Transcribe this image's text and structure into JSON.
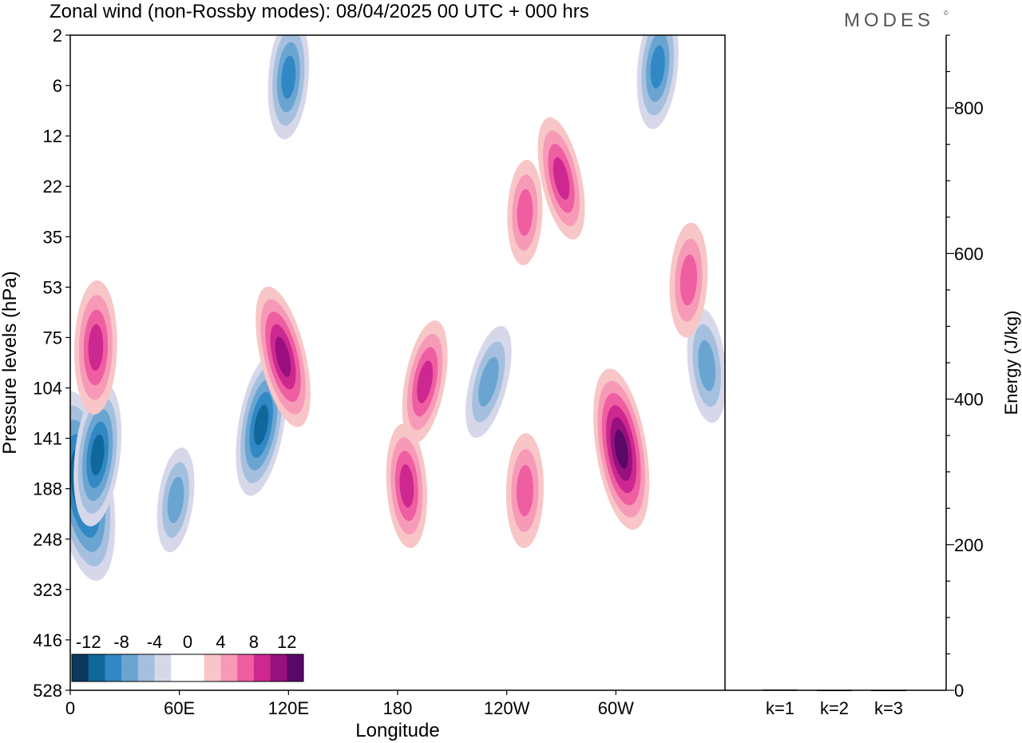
{
  "title": "Zonal wind (non-Rossby modes):  08/04/2025  00 UTC  + 000 hrs",
  "logo": {
    "text": "MODES",
    "mark": "©"
  },
  "chart_data": [
    {
      "type": "heatmap",
      "xlabel": "Longitude",
      "ylabel": "Pressure levels (hPa)",
      "x_ticks": [
        "0",
        "60E",
        "120E",
        "180",
        "120W",
        "60W"
      ],
      "x_tick_degrees": [
        0,
        60,
        120,
        180,
        240,
        300
      ],
      "xlim_degrees_east": [
        0,
        360
      ],
      "y_ticks": [
        "2",
        "6",
        "12",
        "22",
        "35",
        "53",
        "75",
        "104",
        "141",
        "188",
        "248",
        "323",
        "416",
        "528"
      ],
      "y_axis": "pressure increasing downward, top 2 hPa, bottom 528 hPa",
      "colorbar": {
        "labels": [
          "-12",
          "-8",
          "-4",
          "0",
          "4",
          "8",
          "12"
        ],
        "colors": [
          "#0b3a5e",
          "#10679b",
          "#3188c4",
          "#6aa5d2",
          "#a5c0de",
          "#d6d8ea",
          "#ffffff",
          "#ffffff",
          "#f8c6c6",
          "#f79ab8",
          "#ef5ea0",
          "#cc2890",
          "#98107e",
          "#5a0868"
        ]
      },
      "features": [
        {
          "kind": "neg",
          "lon": 7,
          "p": 185,
          "peak": -14
        },
        {
          "kind": "neg",
          "lon": 15,
          "p": 155,
          "peak": -9
        },
        {
          "kind": "pos",
          "lon": 14,
          "p": 80,
          "peak": 8
        },
        {
          "kind": "neg",
          "lon": 58,
          "p": 200,
          "peak": -5
        },
        {
          "kind": "neg",
          "lon": 105,
          "p": 130,
          "peak": -9
        },
        {
          "kind": "pos",
          "lon": 117,
          "p": 85,
          "peak": 9
        },
        {
          "kind": "pos",
          "lon": 185,
          "p": 185,
          "peak": 7
        },
        {
          "kind": "pos",
          "lon": 195,
          "p": 100,
          "peak": 7
        },
        {
          "kind": "neg",
          "lon": 230,
          "p": 100,
          "peak": -6
        },
        {
          "kind": "pos",
          "lon": 250,
          "p": 190,
          "peak": 6
        },
        {
          "kind": "pos",
          "lon": 303,
          "p": 150,
          "peak": 11
        },
        {
          "kind": "neg",
          "lon": 323,
          "p": 4,
          "peak": -7
        },
        {
          "kind": "neg",
          "lon": 120,
          "p": 5,
          "peak": -7
        },
        {
          "kind": "neg",
          "lon": 350,
          "p": 90,
          "peak": -6
        },
        {
          "kind": "pos",
          "lon": 340,
          "p": 50,
          "peak": 6
        },
        {
          "kind": "pos",
          "lon": 270,
          "p": 20,
          "peak": 7
        },
        {
          "kind": "pos",
          "lon": 250,
          "p": 28,
          "peak": 5
        }
      ]
    },
    {
      "type": "bar",
      "ylabel": "Energy (J/kg)",
      "ylim": [
        0,
        900
      ],
      "y_ticks": [
        0,
        200,
        400,
        600,
        800
      ],
      "categories": [
        "k=1",
        "k=2",
        "k=3"
      ],
      "values": [
        1,
        0.5,
        0.5
      ]
    }
  ]
}
